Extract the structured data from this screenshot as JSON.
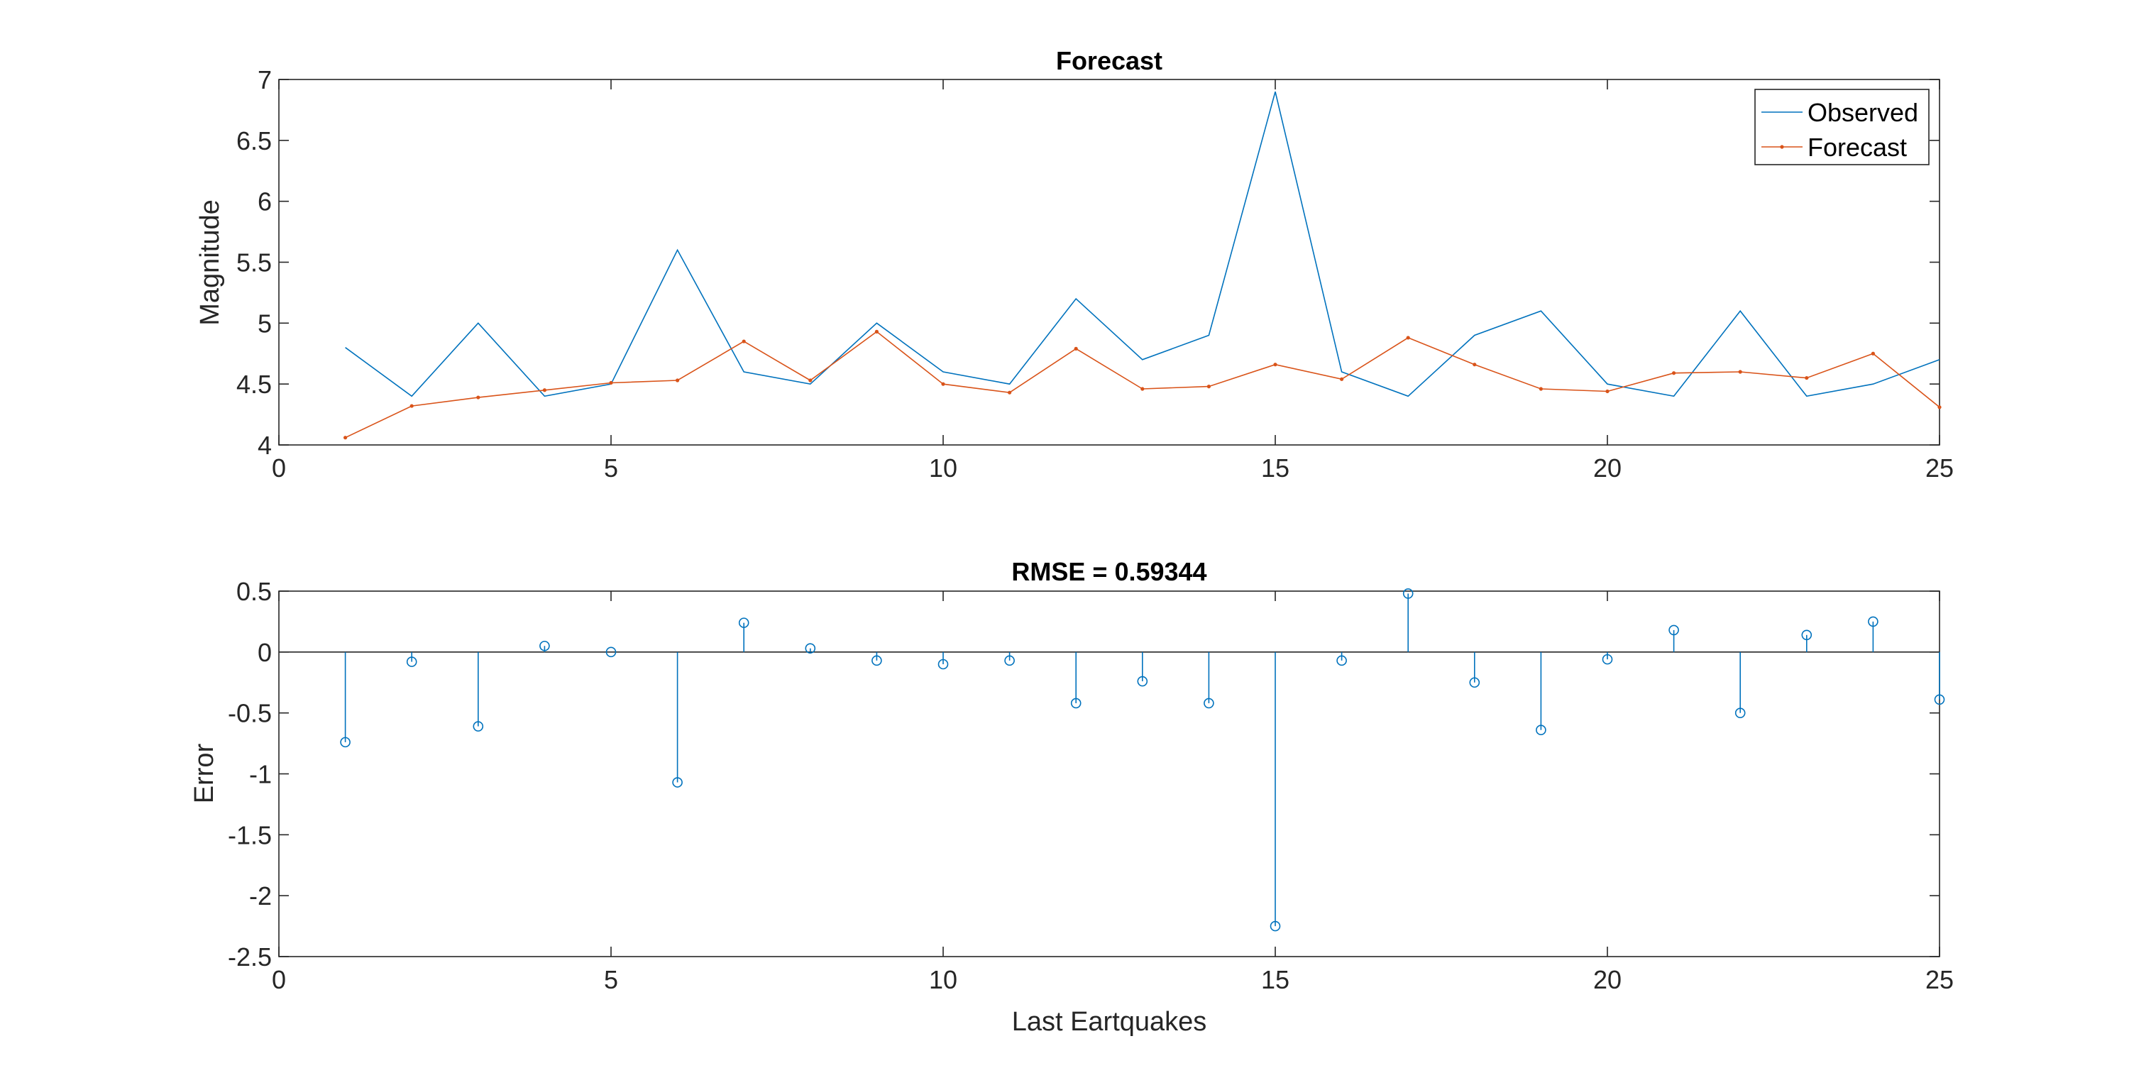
{
  "chart_data": [
    {
      "type": "line",
      "title": "Forecast",
      "xlabel": "",
      "ylabel": "Magnitude",
      "xlim": [
        0,
        25
      ],
      "ylim": [
        4,
        7
      ],
      "xticks": [
        "0",
        "5",
        "10",
        "15",
        "20",
        "25"
      ],
      "yticks": [
        "4",
        "4.5",
        "5",
        "5.5",
        "6",
        "6.5",
        "7"
      ],
      "grid": false,
      "legend_position": "top-right",
      "x": [
        1,
        2,
        3,
        4,
        5,
        6,
        7,
        8,
        9,
        10,
        11,
        12,
        13,
        14,
        15,
        16,
        17,
        18,
        19,
        20,
        21,
        22,
        23,
        24,
        25
      ],
      "series": [
        {
          "name": "Observed",
          "color": "#0072BD",
          "marker": "none",
          "values": [
            4.8,
            4.4,
            5.0,
            4.4,
            4.5,
            5.6,
            4.6,
            4.5,
            5.0,
            4.6,
            4.5,
            5.2,
            4.7,
            4.9,
            6.9,
            4.6,
            4.4,
            4.9,
            5.1,
            4.5,
            4.4,
            5.1,
            4.4,
            4.5,
            4.7
          ]
        },
        {
          "name": "Forecast",
          "color": "#D95319",
          "marker": "dot",
          "values": [
            4.06,
            4.32,
            4.39,
            4.45,
            4.51,
            4.53,
            4.85,
            4.53,
            4.93,
            4.5,
            4.43,
            4.79,
            4.46,
            4.48,
            4.66,
            4.54,
            4.88,
            4.66,
            4.46,
            4.44,
            4.59,
            4.6,
            4.55,
            4.75,
            4.31
          ]
        }
      ]
    },
    {
      "type": "stem",
      "title": "RMSE = 0.59344",
      "xlabel": "Last Eartquakes",
      "ylabel": "Error",
      "xlim": [
        0,
        25
      ],
      "ylim": [
        -2.5,
        0.5
      ],
      "xticks": [
        "0",
        "5",
        "10",
        "15",
        "20",
        "25"
      ],
      "yticks": [
        "-2.5",
        "-2",
        "-1.5",
        "-1",
        "-0.5",
        "0",
        "0.5"
      ],
      "grid": false,
      "baseline": 0,
      "x": [
        1,
        2,
        3,
        4,
        5,
        6,
        7,
        8,
        9,
        10,
        11,
        12,
        13,
        14,
        15,
        16,
        17,
        18,
        19,
        20,
        21,
        22,
        23,
        24,
        25
      ],
      "series": [
        {
          "color": "#0072BD",
          "marker": "circle",
          "values": [
            -0.74,
            -0.08,
            -0.61,
            0.05,
            0.0,
            -1.07,
            0.24,
            0.03,
            -0.07,
            -0.1,
            -0.07,
            -0.42,
            -0.24,
            -0.42,
            -2.25,
            -0.07,
            0.48,
            -0.25,
            -0.64,
            -0.06,
            0.18,
            -0.5,
            0.14,
            0.25,
            -0.39
          ]
        }
      ]
    }
  ]
}
